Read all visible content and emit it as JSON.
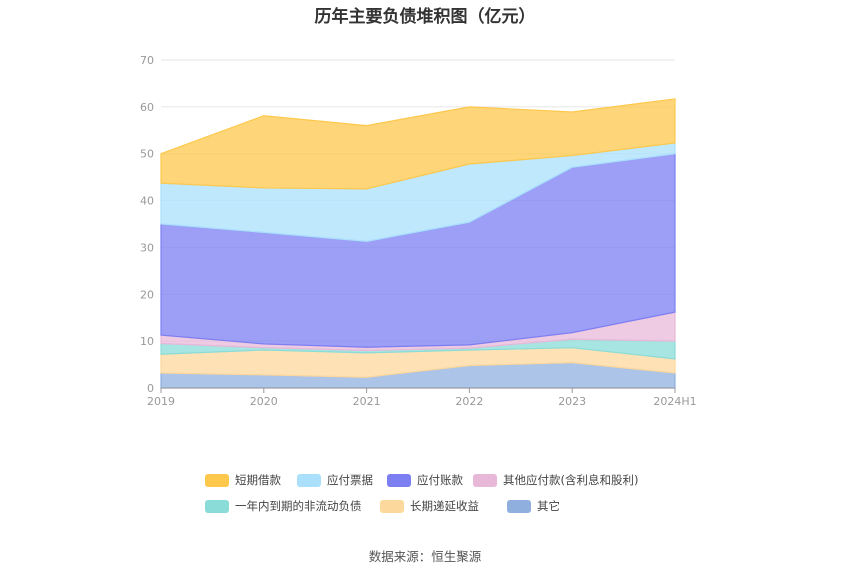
{
  "source_label": "数据来源：恒生聚源",
  "chart_data": {
    "type": "area",
    "stacked": true,
    "title": "历年主要负债堆积图（亿元）",
    "xlabel": "",
    "ylabel": "",
    "ylim": [
      0,
      70
    ],
    "yticks": [
      0,
      10,
      20,
      30,
      40,
      50,
      60,
      70
    ],
    "grid": true,
    "legend_position": "bottom",
    "x": [
      "2019",
      "2020",
      "2021",
      "2022",
      "2023",
      "2024H1"
    ],
    "series": [
      {
        "name": "其它",
        "color": "#8fb0df",
        "values": [
          3.2,
          2.8,
          2.3,
          4.8,
          5.4,
          3.2
        ]
      },
      {
        "name": "长期递延收益",
        "color": "#fdd89d",
        "values": [
          4.0,
          5.3,
          5.2,
          3.3,
          3.2,
          3.0
        ]
      },
      {
        "name": "一年内到期的非流动负债",
        "color": "#8adcd8",
        "values": [
          2.3,
          0.5,
          0.5,
          0.4,
          1.8,
          3.8
        ]
      },
      {
        "name": "其他应付款(含利息和股利)",
        "color": "#e8b8d9",
        "values": [
          1.8,
          0.8,
          0.7,
          0.7,
          1.4,
          6.2
        ]
      },
      {
        "name": "应付账款",
        "color": "#7b7ff2",
        "values": [
          23.7,
          23.8,
          22.6,
          26.2,
          35.3,
          33.8
        ]
      },
      {
        "name": "应付票据",
        "color": "#aae0fc",
        "values": [
          8.7,
          9.5,
          11.2,
          12.4,
          2.5,
          2.3
        ]
      },
      {
        "name": "短期借款",
        "color": "#fdc84c",
        "values": [
          6.3,
          15.4,
          13.5,
          12.2,
          9.3,
          9.4
        ]
      }
    ]
  }
}
